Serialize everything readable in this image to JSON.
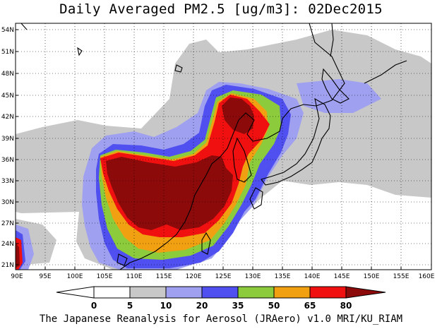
{
  "title": "Daily Averaged PM2.5 [ug/m3]: 02Dec2015",
  "footer": "The Japanese Reanalysis for Aerosol (JRAero) v1.0 MRI/KU_RIAM",
  "map": {
    "lon_labels": [
      "90E",
      "95E",
      "100E",
      "105E",
      "110E",
      "115E",
      "120E",
      "125E",
      "130E",
      "135E",
      "140E",
      "145E",
      "150E",
      "155E",
      "160E"
    ],
    "lat_labels": [
      "54N",
      "51N",
      "48N",
      "45N",
      "42N",
      "39N",
      "36N",
      "33N",
      "30N",
      "27N",
      "24N",
      "21N"
    ]
  },
  "colorbar": {
    "labels": [
      "0",
      "5",
      "10",
      "20",
      "35",
      "50",
      "65",
      "80"
    ],
    "colors": [
      "#ffffff",
      "#c8c8c8",
      "#a0a0f0",
      "#5050f0",
      "#8ccc3c",
      "#f0a010",
      "#f01010",
      "#8c0a0a"
    ]
  }
}
